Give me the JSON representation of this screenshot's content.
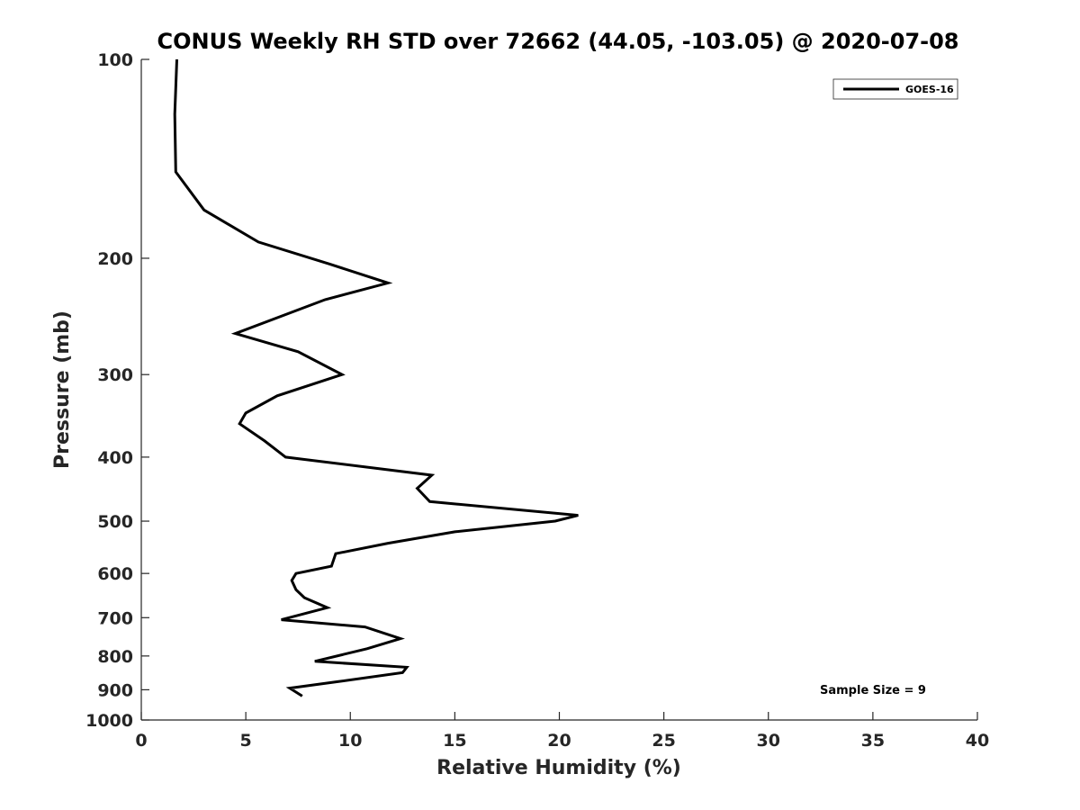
{
  "chart_data": {
    "type": "line",
    "title": "CONUS Weekly RH STD over 72662 (44.05, -103.05) @ 2020-07-08",
    "xlabel": "Relative Humidity (%)",
    "ylabel": "Pressure (mb)",
    "xlim": [
      0,
      40
    ],
    "ylim": [
      100,
      1000
    ],
    "yscale": "log-reversed",
    "xticks": [
      0,
      5,
      10,
      15,
      20,
      25,
      30,
      35,
      40
    ],
    "xtick_labels": [
      "0",
      "5",
      "10",
      "15",
      "20",
      "25",
      "30",
      "35",
      "40"
    ],
    "yticks": [
      100,
      200,
      300,
      400,
      500,
      600,
      700,
      800,
      900,
      1000
    ],
    "ytick_labels": [
      "100",
      "200",
      "300",
      "400",
      "500",
      "600",
      "700",
      "800",
      "900",
      "1000"
    ],
    "legend_position": "top-right",
    "grid": false,
    "annotation": "Sample Size = 9",
    "series": [
      {
        "name": "GOES-16",
        "color": "#000000",
        "x": [
          1.7,
          1.6,
          1.65,
          3.0,
          5.6,
          9.0,
          11.8,
          8.8,
          4.5,
          7.5,
          9.6,
          6.5,
          5.0,
          4.7,
          5.9,
          6.9,
          13.9,
          13.2,
          13.8,
          20.9,
          19.8,
          15.0,
          11.8,
          9.3,
          9.1,
          7.4,
          7.2,
          7.4,
          7.8,
          8.9,
          6.7,
          10.7,
          12.4,
          10.8,
          8.3,
          12.7,
          12.5,
          9.4,
          7.1,
          7.7
        ],
        "y": [
          100,
          121,
          148,
          169,
          189,
          204,
          218,
          231,
          260,
          277,
          300,
          323,
          343,
          356,
          378,
          400,
          426,
          446,
          467,
          490,
          500,
          519,
          540,
          560,
          585,
          600,
          615,
          635,
          653,
          676,
          705,
          723,
          753,
          780,
          815,
          832,
          848,
          875,
          895,
          920
        ]
      }
    ]
  }
}
